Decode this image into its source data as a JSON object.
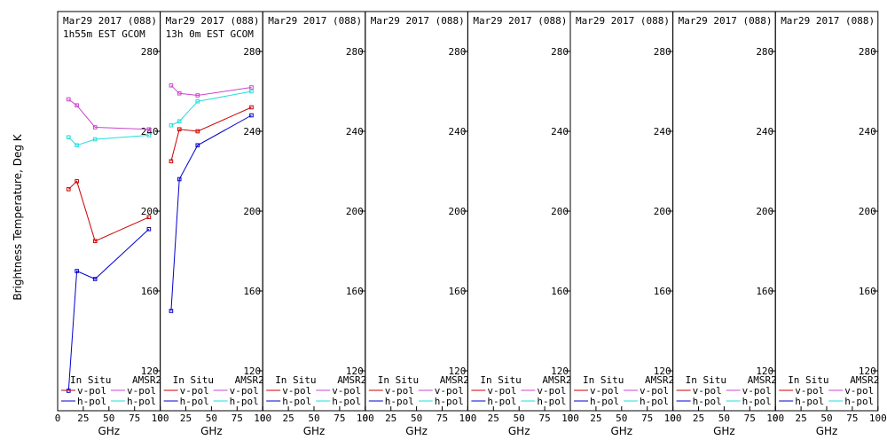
{
  "figure": {
    "ylabel": "Brightness Temperature, Deg K",
    "xlabel": "GHz",
    "legend": {
      "left_header": "In Situ",
      "right_header": "AMSR2",
      "entries": [
        "v-pol",
        "h-pol"
      ]
    }
  },
  "colors": {
    "insitu_v": "#cc0000",
    "insitu_h": "#0000cc",
    "amsr2_v": "#cc44cc",
    "amsr2_h": "#22dddd",
    "frame": "#000000"
  },
  "chart_data": [
    {
      "type": "line",
      "title": [
        "Mar29 2017 (088)",
        "1h55m EST GCOM"
      ],
      "xlabel": "GHz",
      "ylabel": "Brightness Temperature, Deg K",
      "xlim": [
        0,
        100
      ],
      "ylim": [
        100,
        295
      ],
      "xticks": [
        0,
        25,
        50,
        75,
        100
      ],
      "yticks": [
        120,
        160,
        200,
        240,
        280
      ],
      "series": [
        {
          "name": "In Situ v-pol",
          "x": [
            10.65,
            18.7,
            36.5,
            89.0
          ],
          "values": [
            211,
            215,
            185,
            197
          ]
        },
        {
          "name": "In Situ h-pol",
          "x": [
            10.65,
            18.7,
            36.5,
            89.0
          ],
          "values": [
            110,
            170,
            166,
            191
          ]
        },
        {
          "name": "AMSR2 v-pol",
          "x": [
            10.65,
            18.7,
            36.5,
            89.0
          ],
          "values": [
            256,
            253,
            242,
            241
          ]
        },
        {
          "name": "AMSR2 h-pol",
          "x": [
            10.65,
            18.7,
            36.5,
            89.0
          ],
          "values": [
            237,
            233,
            236,
            238
          ]
        }
      ]
    },
    {
      "type": "line",
      "title": [
        "Mar29 2017 (088)",
        "13h 0m EST GCOM"
      ],
      "xlabel": "GHz",
      "ylabel": "",
      "xlim": [
        0,
        100
      ],
      "ylim": [
        100,
        295
      ],
      "xticks": [
        0,
        25,
        50,
        75,
        100
      ],
      "yticks": [
        120,
        160,
        200,
        240,
        280
      ],
      "series": [
        {
          "name": "In Situ v-pol",
          "x": [
            10.65,
            18.7,
            36.5,
            89.0
          ],
          "values": [
            225,
            241,
            240,
            252
          ]
        },
        {
          "name": "In Situ h-pol",
          "x": [
            10.65,
            18.7,
            36.5,
            89.0
          ],
          "values": [
            150,
            216,
            233,
            248
          ]
        },
        {
          "name": "AMSR2 v-pol",
          "x": [
            10.65,
            18.7,
            36.5,
            89.0
          ],
          "values": [
            263,
            259,
            258,
            262
          ]
        },
        {
          "name": "AMSR2 h-pol",
          "x": [
            10.65,
            18.7,
            36.5,
            89.0
          ],
          "values": [
            243,
            245,
            255,
            260
          ]
        }
      ]
    },
    {
      "type": "line",
      "title": [
        "Mar29 2017 (088)"
      ],
      "xlabel": "GHz",
      "ylabel": "",
      "xlim": [
        0,
        100
      ],
      "ylim": [
        100,
        295
      ],
      "xticks": [
        0,
        25,
        50,
        75,
        100
      ],
      "yticks": [
        120,
        160,
        200,
        240,
        280
      ],
      "series": []
    },
    {
      "type": "line",
      "title": [
        "Mar29 2017 (088)"
      ],
      "xlabel": "GHz",
      "ylabel": "",
      "xlim": [
        0,
        100
      ],
      "ylim": [
        100,
        295
      ],
      "xticks": [
        0,
        25,
        50,
        75,
        100
      ],
      "yticks": [
        120,
        160,
        200,
        240,
        280
      ],
      "series": []
    },
    {
      "type": "line",
      "title": [
        "Mar29 2017 (088)"
      ],
      "xlabel": "GHz",
      "ylabel": "",
      "xlim": [
        0,
        100
      ],
      "ylim": [
        100,
        295
      ],
      "xticks": [
        0,
        25,
        50,
        75,
        100
      ],
      "yticks": [
        120,
        160,
        200,
        240,
        280
      ],
      "series": []
    },
    {
      "type": "line",
      "title": [
        "Mar29 2017 (088)"
      ],
      "xlabel": "GHz",
      "ylabel": "",
      "xlim": [
        0,
        100
      ],
      "ylim": [
        100,
        295
      ],
      "xticks": [
        0,
        25,
        50,
        75,
        100
      ],
      "yticks": [
        120,
        160,
        200,
        240,
        280
      ],
      "series": []
    },
    {
      "type": "line",
      "title": [
        "Mar29 2017 (088)"
      ],
      "xlabel": "GHz",
      "ylabel": "",
      "xlim": [
        0,
        100
      ],
      "ylim": [
        100,
        295
      ],
      "xticks": [
        0,
        25,
        50,
        75,
        100
      ],
      "yticks": [
        120,
        160,
        200,
        240,
        280
      ],
      "series": []
    },
    {
      "type": "line",
      "title": [
        "Mar29 2017 (088)"
      ],
      "xlabel": "GHz",
      "ylabel": "",
      "xlim": [
        0,
        100
      ],
      "ylim": [
        100,
        295
      ],
      "xticks": [
        0,
        25,
        50,
        75,
        100
      ],
      "yticks": [
        120,
        160,
        200,
        240,
        280
      ],
      "series": []
    }
  ]
}
